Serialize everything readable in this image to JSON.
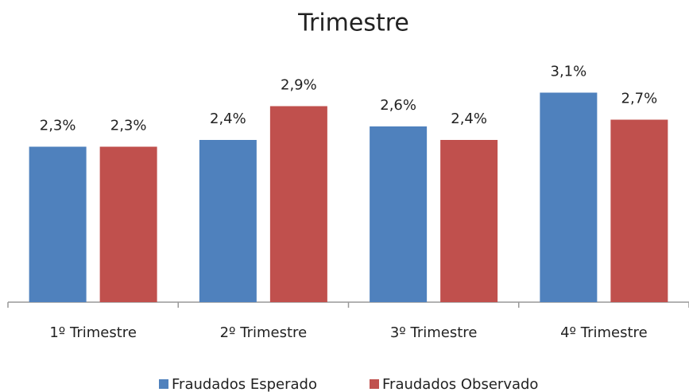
{
  "chart_data": {
    "type": "bar",
    "title": "Trimestre",
    "categories": [
      "1º Trimestre",
      "2º Trimestre",
      "3º Trimestre",
      "4º Trimestre"
    ],
    "series": [
      {
        "name": "Fraudados Esperado",
        "color": "#4f81bd",
        "values": [
          2.3,
          2.4,
          2.6,
          3.1
        ],
        "value_labels": [
          "2,3%",
          "2,4%",
          "2,6%",
          "3,1%"
        ]
      },
      {
        "name": "Fraudados Observado",
        "color": "#c0504d",
        "values": [
          2.3,
          2.9,
          2.4,
          2.7
        ],
        "value_labels": [
          "2,3%",
          "2,9%",
          "2,4%",
          "2,7%"
        ]
      }
    ],
    "ylim": [
      0,
      4.4
    ],
    "grid": false,
    "legend": "bottom"
  }
}
